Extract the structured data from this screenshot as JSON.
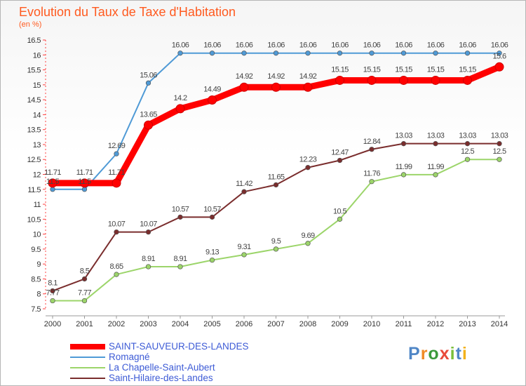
{
  "title": "Evolution du Taux de Taxe d'Habitation",
  "subtitle": "(en %)",
  "logo": "Proxiti",
  "chart_data": {
    "type": "line",
    "title": "Evolution du Taux de Taxe d'Habitation",
    "ylabel": "(en %)",
    "xlabel": "",
    "x": [
      "2000",
      "2001",
      "2002",
      "2003",
      "2004",
      "2005",
      "2006",
      "2007",
      "2008",
      "2009",
      "2010",
      "2011",
      "2012",
      "2013",
      "2014"
    ],
    "ylim": [
      7.5,
      16.5
    ],
    "yticks": [
      "7.5",
      "8",
      "8.5",
      "9",
      "9.5",
      "10",
      "10.5",
      "11",
      "11.5",
      "12",
      "12.5",
      "13",
      "13.5",
      "14",
      "14.5",
      "15",
      "15.5",
      "16",
      "16.5"
    ],
    "grid": false,
    "legend_position": "bottom-left",
    "series": [
      {
        "name": "Romagné",
        "color": "#4f9ad6",
        "values": [
          11.5,
          11.5,
          12.69,
          15.06,
          16.06,
          16.06,
          16.06,
          16.06,
          16.06,
          16.06,
          16.06,
          16.06,
          16.06,
          16.06,
          16.06
        ],
        "labels": [
          "11.5",
          "11.5",
          "12.69",
          "15.06",
          "16.06",
          "16.06",
          "16.06",
          "16.06",
          "16.06",
          "16.06",
          "16.06",
          "16.06",
          "16.06",
          "16.06",
          "16.06"
        ]
      },
      {
        "name": "La Chapelle-Saint-Aubert",
        "color": "#9cd56a",
        "values": [
          7.77,
          7.77,
          8.65,
          8.91,
          8.91,
          9.13,
          9.31,
          9.5,
          9.69,
          10.5,
          11.76,
          11.99,
          11.99,
          12.5,
          12.5
        ],
        "labels": [
          "7.77",
          "7.77",
          "8.65",
          "8.91",
          "8.91",
          "9.13",
          "9.31",
          "9.5",
          "9.69",
          "10.5",
          "11.76",
          "11.99",
          "11.99",
          "12.5",
          "12.5"
        ]
      },
      {
        "name": "Saint-Hilaire-des-Landes",
        "color": "#7a2d2d",
        "values": [
          8.1,
          8.5,
          10.07,
          10.07,
          10.57,
          10.57,
          11.42,
          11.65,
          12.23,
          12.47,
          12.84,
          13.03,
          13.03,
          13.03,
          13.03
        ],
        "labels": [
          "8.1",
          "8.5",
          "10.07",
          "10.07",
          "10.57",
          "10.57",
          "11.42",
          "11.65",
          "12.23",
          "12.47",
          "12.84",
          "13.03",
          "13.03",
          "13.03",
          "13.03"
        ]
      },
      {
        "name": "SAINT-SAUVEUR-DES-LANDES",
        "color": "#ff0000",
        "values": [
          11.71,
          11.71,
          11.71,
          13.65,
          14.2,
          14.49,
          14.92,
          14.92,
          14.92,
          15.15,
          15.15,
          15.15,
          15.15,
          15.15,
          15.6
        ],
        "labels": [
          "11.71",
          "11.71",
          "11.71",
          "13.65",
          "14.2",
          "14.49",
          "14.92",
          "14.92",
          "14.92",
          "15.15",
          "15.15",
          "15.15",
          "15.15",
          "15.15",
          "15.6"
        ]
      }
    ],
    "legend": [
      {
        "name": "SAINT-SAUVEUR-DES-LANDES",
        "color": "#ff0000",
        "bold": true
      },
      {
        "name": "Romagné",
        "color": "#4f9ad6",
        "bold": false
      },
      {
        "name": "La Chapelle-Saint-Aubert",
        "color": "#9cd56a",
        "bold": false
      },
      {
        "name": "Saint-Hilaire-des-Landes",
        "color": "#7a2d2d",
        "bold": false
      }
    ]
  }
}
